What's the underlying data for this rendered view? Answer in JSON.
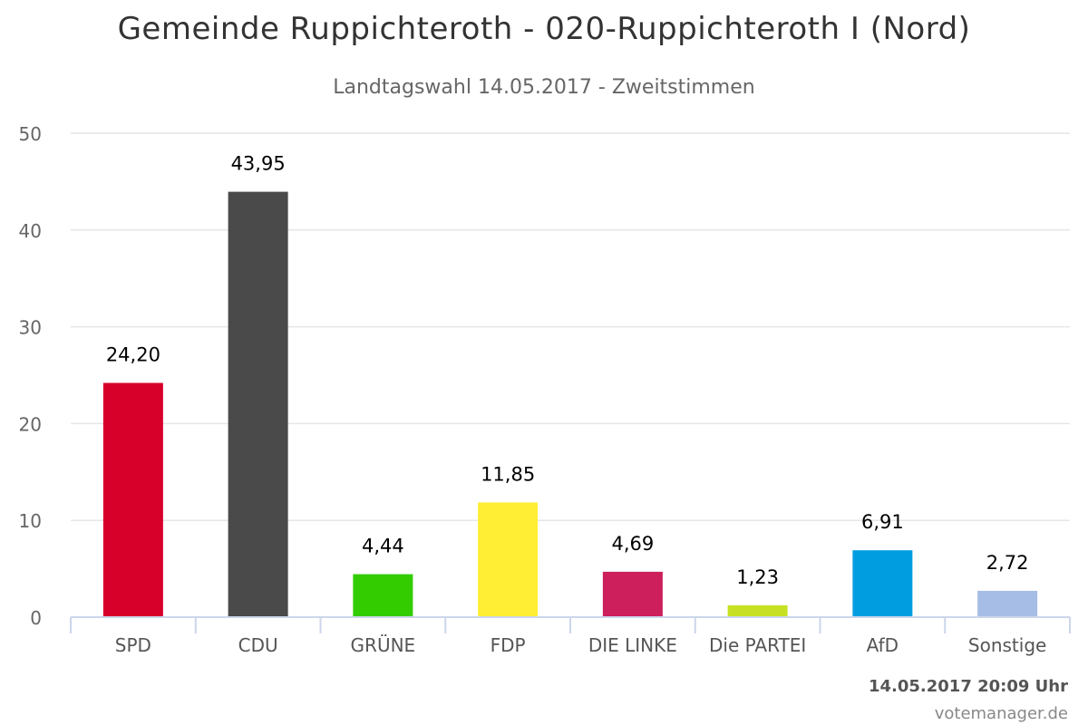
{
  "chart_data": {
    "type": "bar",
    "title": "Gemeinde Ruppichteroth - 020-Ruppichteroth I (Nord)",
    "subtitle": "Landtagswahl 14.05.2017 - Zweitstimmen",
    "categories": [
      "SPD",
      "CDU",
      "GRÜNE",
      "FDP",
      "DIE LINKE",
      "Die PARTEI",
      "AfD",
      "Sonstige"
    ],
    "values": [
      24.2,
      43.95,
      4.44,
      11.85,
      4.69,
      1.23,
      6.91,
      2.72
    ],
    "value_labels": [
      "24,20",
      "43,95",
      "4,44",
      "11,85",
      "4,69",
      "1,23",
      "6,91",
      "2,72"
    ],
    "colors": [
      "#d7002b",
      "#4a4a4a",
      "#33cc00",
      "#ffee33",
      "#cc1f5c",
      "#c8e024",
      "#009de0",
      "#a6bde6"
    ],
    "ylim": [
      0,
      50
    ],
    "yticks": [
      0,
      10,
      20,
      30,
      40,
      50
    ],
    "grid": true,
    "legend": "none",
    "xlabel": "",
    "ylabel": ""
  },
  "footer": {
    "date": "14.05.2017 20:09 Uhr",
    "credit": "votemanager.de"
  }
}
